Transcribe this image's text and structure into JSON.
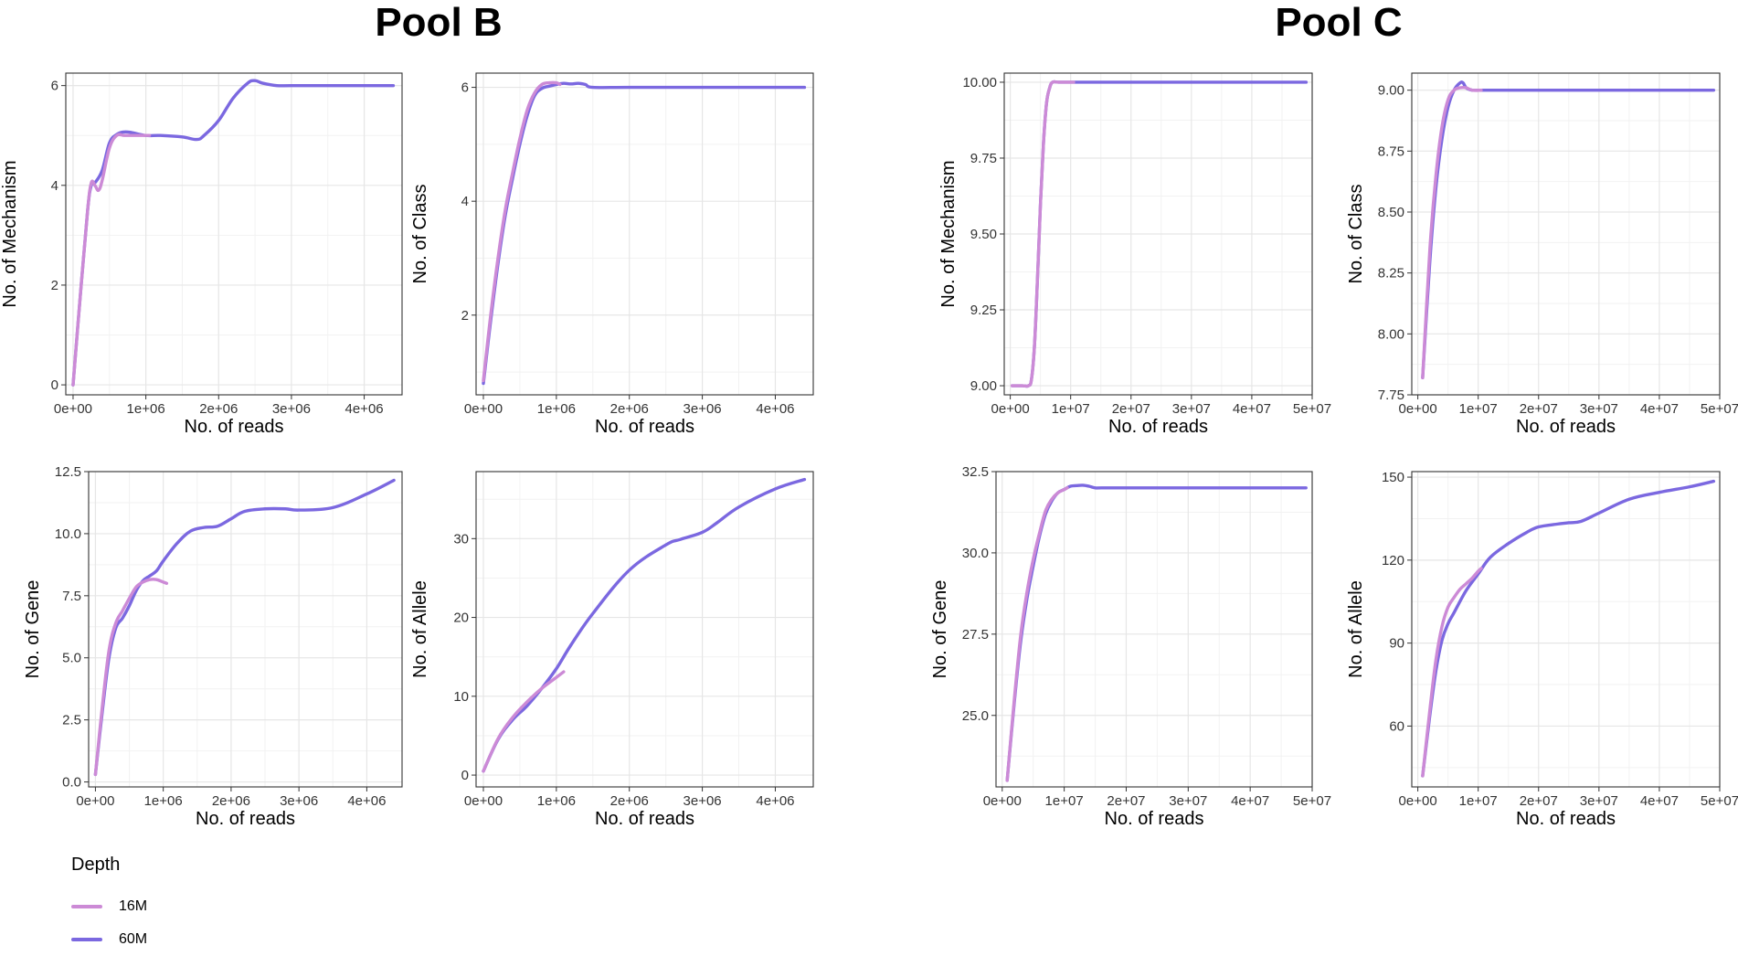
{
  "titles": {
    "left": "Pool B",
    "right": "Pool C"
  },
  "legend": {
    "title": "Depth",
    "items": [
      {
        "label": "16M",
        "color": "#cc8ad6"
      },
      {
        "label": "60M",
        "color": "#7b68e0"
      }
    ]
  },
  "chart_data": [
    {
      "type": "line",
      "pool": "Pool B",
      "xlabel": "No. of reads",
      "ylabel": "No. of Mechanism",
      "xlim": [
        -100000,
        4520000
      ],
      "ylim": [
        -0.2,
        6.25
      ],
      "xticks": [
        0,
        1000000,
        2000000,
        3000000,
        4000000
      ],
      "xticklabels": [
        "0e+00",
        "1e+06",
        "2e+06",
        "3e+06",
        "4e+06"
      ],
      "yticks": [
        0,
        2,
        4,
        6
      ],
      "yticklabels": [
        "0",
        "2",
        "4",
        "6"
      ],
      "series": [
        {
          "name": "60M",
          "x": [
            0,
            100000,
            200000,
            250000,
            300000,
            400000,
            500000,
            600000,
            700000,
            800000,
            1000000,
            1200000,
            1500000,
            1700000,
            1800000,
            2000000,
            2200000,
            2400000,
            2500000,
            2600000,
            2800000,
            3000000,
            3500000,
            4000000,
            4400000
          ],
          "y": [
            0,
            1.8,
            3.5,
            4.0,
            4.05,
            4.3,
            4.85,
            5.02,
            5.07,
            5.06,
            5.0,
            5.0,
            4.97,
            4.92,
            5.0,
            5.3,
            5.75,
            6.05,
            6.1,
            6.05,
            6.0,
            6.0,
            6.0,
            6.0,
            6.0
          ]
        },
        {
          "name": "16M",
          "x": [
            0,
            100000,
            200000,
            250000,
            300000,
            350000,
            400000,
            500000,
            600000,
            700000,
            800000,
            900000,
            1050000
          ],
          "y": [
            0,
            1.8,
            3.5,
            4.05,
            4.0,
            3.9,
            4.1,
            4.75,
            5.0,
            5.0,
            5.0,
            5.0,
            5.0
          ]
        }
      ]
    },
    {
      "type": "line",
      "pool": "Pool B",
      "xlabel": "No. of reads",
      "ylabel": "No. of Class",
      "xlim": [
        -100000,
        4520000
      ],
      "ylim": [
        0.6,
        6.25
      ],
      "xticks": [
        0,
        1000000,
        2000000,
        3000000,
        4000000
      ],
      "xticklabels": [
        "0e+00",
        "1e+06",
        "2e+06",
        "3e+06",
        "4e+06"
      ],
      "yticks": [
        2,
        4,
        6
      ],
      "yticklabels": [
        "2",
        "4",
        "6"
      ],
      "series": [
        {
          "name": "60M",
          "x": [
            0,
            100000,
            200000,
            300000,
            400000,
            500000,
            600000,
            700000,
            800000,
            900000,
            1000000,
            1100000,
            1200000,
            1300000,
            1400000,
            1500000,
            2000000,
            3000000,
            4000000,
            4400000
          ],
          "y": [
            0.8,
            1.9,
            2.9,
            3.75,
            4.4,
            5.0,
            5.5,
            5.85,
            5.98,
            6.02,
            6.05,
            6.07,
            6.06,
            6.07,
            6.05,
            6.0,
            6.0,
            6.0,
            6.0,
            6.0
          ]
        },
        {
          "name": "16M",
          "x": [
            0,
            100000,
            200000,
            300000,
            400000,
            500000,
            600000,
            700000,
            800000,
            900000,
            1000000,
            1050000
          ],
          "y": [
            0.85,
            2.0,
            3.0,
            3.85,
            4.5,
            5.1,
            5.6,
            5.9,
            6.05,
            6.08,
            6.08,
            6.05
          ]
        }
      ]
    },
    {
      "type": "line",
      "pool": "Pool C",
      "xlabel": "No. of reads",
      "ylabel": "No. of Mechanism",
      "xlim": [
        -1000000,
        50000000
      ],
      "ylim": [
        8.97,
        10.03
      ],
      "xticks": [
        0,
        10000000,
        20000000,
        30000000,
        40000000,
        50000000
      ],
      "xticklabels": [
        "0e+00",
        "1e+07",
        "2e+07",
        "3e+07",
        "4e+07",
        "5e+07"
      ],
      "yticks": [
        9.0,
        9.25,
        9.5,
        9.75,
        10.0
      ],
      "yticklabels": [
        "9.00",
        "9.25",
        "9.50",
        "9.75",
        "10.00"
      ],
      "series": [
        {
          "name": "60M",
          "x": [
            300000,
            2000000,
            3000000,
            3500000,
            4000000,
            4500000,
            5000000,
            5500000,
            6000000,
            6500000,
            7000000,
            8000000,
            10000000,
            20000000,
            30000000,
            40000000,
            49000000
          ],
          "y": [
            9.0,
            9.0,
            9.0,
            9.02,
            9.13,
            9.35,
            9.6,
            9.8,
            9.93,
            9.98,
            10.0,
            10.0,
            10.0,
            10.0,
            10.0,
            10.0,
            10.0
          ]
        },
        {
          "name": "16M",
          "x": [
            300000,
            2000000,
            3000000,
            3500000,
            4000000,
            4500000,
            5000000,
            5500000,
            6000000,
            6500000,
            7000000,
            8000000,
            10000000,
            10500000
          ],
          "y": [
            9.0,
            9.0,
            9.0,
            9.02,
            9.13,
            9.35,
            9.6,
            9.8,
            9.93,
            9.98,
            10.0,
            10.0,
            10.0,
            10.0
          ]
        }
      ]
    },
    {
      "type": "line",
      "pool": "Pool C",
      "xlabel": "No. of reads",
      "ylabel": "No. of Class",
      "xlim": [
        -1000000,
        50000000
      ],
      "ylim": [
        7.75,
        9.07
      ],
      "xticks": [
        0,
        10000000,
        20000000,
        30000000,
        40000000,
        50000000
      ],
      "xticklabels": [
        "0e+00",
        "1e+07",
        "2e+07",
        "3e+07",
        "4e+07",
        "5e+07"
      ],
      "yticks": [
        7.75,
        8.0,
        8.25,
        8.5,
        8.75,
        9.0
      ],
      "yticklabels": [
        "7.75",
        "8.00",
        "8.25",
        "8.50",
        "8.75",
        "9.00"
      ],
      "series": [
        {
          "name": "60M",
          "x": [
            800000,
            2000000,
            3000000,
            4000000,
            5000000,
            6000000,
            7000000,
            7500000,
            8000000,
            9000000,
            10000000,
            12000000,
            20000000,
            30000000,
            40000000,
            49000000
          ],
          "y": [
            7.82,
            8.3,
            8.6,
            8.8,
            8.93,
            9.0,
            9.03,
            9.03,
            9.01,
            9.0,
            9.0,
            9.0,
            9.0,
            9.0,
            9.0,
            9.0
          ]
        },
        {
          "name": "16M",
          "x": [
            800000,
            2000000,
            3000000,
            4000000,
            5000000,
            6000000,
            7000000,
            8000000,
            9000000,
            10500000
          ],
          "y": [
            7.82,
            8.35,
            8.65,
            8.85,
            8.96,
            9.0,
            9.01,
            9.01,
            9.0,
            9.0
          ]
        }
      ]
    },
    {
      "type": "line",
      "pool": "Pool B",
      "xlabel": "No. of reads",
      "ylabel": "No. of Gene",
      "xlim": [
        -100000,
        4520000
      ],
      "ylim": [
        -0.2,
        12.5
      ],
      "xticks": [
        0,
        1000000,
        2000000,
        3000000,
        4000000
      ],
      "xticklabels": [
        "0e+00",
        "1e+06",
        "2e+06",
        "3e+06",
        "4e+06"
      ],
      "yticks": [
        0,
        2.5,
        5.0,
        7.5,
        10.0,
        12.5
      ],
      "yticklabels": [
        "0.0",
        "2.5",
        "5.0",
        "7.5",
        "10.0",
        "12.5"
      ],
      "series": [
        {
          "name": "60M",
          "x": [
            0,
            100000,
            200000,
            300000,
            400000,
            500000,
            600000,
            700000,
            800000,
            900000,
            1000000,
            1200000,
            1400000,
            1600000,
            1800000,
            2000000,
            2200000,
            2500000,
            2800000,
            3000000,
            3500000,
            4000000,
            4400000
          ],
          "y": [
            0.3,
            2.8,
            5.0,
            6.2,
            6.6,
            7.1,
            7.7,
            8.1,
            8.3,
            8.5,
            8.9,
            9.6,
            10.1,
            10.25,
            10.3,
            10.6,
            10.9,
            11.0,
            11.0,
            10.95,
            11.05,
            11.6,
            12.15
          ]
        },
        {
          "name": "16M",
          "x": [
            0,
            100000,
            200000,
            300000,
            400000,
            500000,
            600000,
            700000,
            800000,
            900000,
            1000000,
            1050000
          ],
          "y": [
            0.3,
            3.0,
            5.3,
            6.4,
            6.9,
            7.4,
            7.85,
            8.05,
            8.15,
            8.15,
            8.05,
            8.0
          ]
        }
      ]
    },
    {
      "type": "line",
      "pool": "Pool B",
      "xlabel": "No. of reads",
      "ylabel": "No. of Allele",
      "xlim": [
        -100000,
        4520000
      ],
      "ylim": [
        -1.5,
        38.5
      ],
      "xticks": [
        0,
        1000000,
        2000000,
        3000000,
        4000000
      ],
      "xticklabels": [
        "0e+00",
        "1e+06",
        "2e+06",
        "3e+06",
        "4e+06"
      ],
      "yticks": [
        0,
        10,
        20,
        30
      ],
      "yticklabels": [
        "0",
        "10",
        "20",
        "30"
      ],
      "series": [
        {
          "name": "60M",
          "x": [
            0,
            200000,
            400000,
            600000,
            800000,
            1000000,
            1200000,
            1500000,
            2000000,
            2500000,
            2700000,
            3000000,
            3200000,
            3500000,
            4000000,
            4400000
          ],
          "y": [
            0.5,
            4.5,
            7.0,
            8.8,
            11.0,
            13.5,
            16.5,
            20.5,
            26.0,
            29.2,
            29.9,
            30.8,
            32.0,
            34.0,
            36.3,
            37.5
          ]
        },
        {
          "name": "16M",
          "x": [
            0,
            200000,
            400000,
            600000,
            800000,
            1000000,
            1100000
          ],
          "y": [
            0.5,
            4.6,
            7.3,
            9.3,
            11.0,
            12.4,
            13.1
          ]
        }
      ]
    },
    {
      "type": "line",
      "pool": "Pool C",
      "xlabel": "No. of reads",
      "ylabel": "No. of Gene",
      "xlim": [
        -1000000,
        50000000
      ],
      "ylim": [
        22.8,
        32.5
      ],
      "xticks": [
        0,
        10000000,
        20000000,
        30000000,
        40000000,
        50000000
      ],
      "xticklabels": [
        "0e+00",
        "1e+07",
        "2e+07",
        "3e+07",
        "4e+07",
        "5e+07"
      ],
      "yticks": [
        25.0,
        27.5,
        30.0,
        32.5
      ],
      "yticklabels": [
        "25.0",
        "27.5",
        "30.0",
        "32.5"
      ],
      "series": [
        {
          "name": "60M",
          "x": [
            800000,
            2000000,
            3000000,
            4000000,
            5000000,
            6000000,
            7000000,
            8000000,
            9000000,
            10000000,
            11000000,
            12000000,
            13000000,
            14000000,
            15000000,
            16000000,
            20000000,
            30000000,
            40000000,
            49000000
          ],
          "y": [
            23.0,
            25.5,
            27.3,
            28.6,
            29.6,
            30.5,
            31.2,
            31.6,
            31.85,
            31.95,
            32.05,
            32.07,
            32.08,
            32.05,
            32.0,
            32.0,
            32.0,
            32.0,
            32.0,
            32.0
          ]
        },
        {
          "name": "16M",
          "x": [
            800000,
            2000000,
            3000000,
            4000000,
            5000000,
            6000000,
            7000000,
            8000000,
            9000000,
            10000000,
            10500000
          ],
          "y": [
            23.0,
            25.6,
            27.5,
            28.8,
            29.8,
            30.6,
            31.3,
            31.65,
            31.85,
            31.95,
            32.0
          ]
        }
      ]
    },
    {
      "type": "line",
      "pool": "Pool C",
      "xlabel": "No. of reads",
      "ylabel": "No. of Allele",
      "xlim": [
        -1000000,
        50000000
      ],
      "ylim": [
        38,
        152
      ],
      "xticks": [
        0,
        10000000,
        20000000,
        30000000,
        40000000,
        50000000
      ],
      "xticklabels": [
        "0e+00",
        "1e+07",
        "2e+07",
        "3e+07",
        "4e+07",
        "5e+07"
      ],
      "yticks": [
        60,
        90,
        120,
        150
      ],
      "yticklabels": [
        "60",
        "90",
        "120",
        "150"
      ],
      "series": [
        {
          "name": "60M",
          "x": [
            800000,
            2000000,
            3000000,
            4000000,
            5000000,
            6000000,
            8000000,
            10000000,
            12000000,
            15000000,
            18000000,
            20000000,
            23000000,
            25000000,
            27000000,
            30000000,
            35000000,
            40000000,
            45000000,
            49000000
          ],
          "y": [
            42,
            64,
            80,
            91,
            97,
            101,
            109,
            115,
            121,
            126,
            130,
            132,
            133,
            133.5,
            134,
            137,
            142,
            144.5,
            146.5,
            148.5
          ]
        },
        {
          "name": "16M",
          "x": [
            800000,
            2000000,
            3000000,
            4000000,
            5000000,
            6000000,
            7000000,
            8000000,
            9000000,
            10000000,
            10500000
          ],
          "y": [
            42,
            66,
            84,
            96,
            103,
            106.5,
            109.5,
            111.5,
            113.5,
            116,
            117
          ]
        }
      ]
    }
  ]
}
